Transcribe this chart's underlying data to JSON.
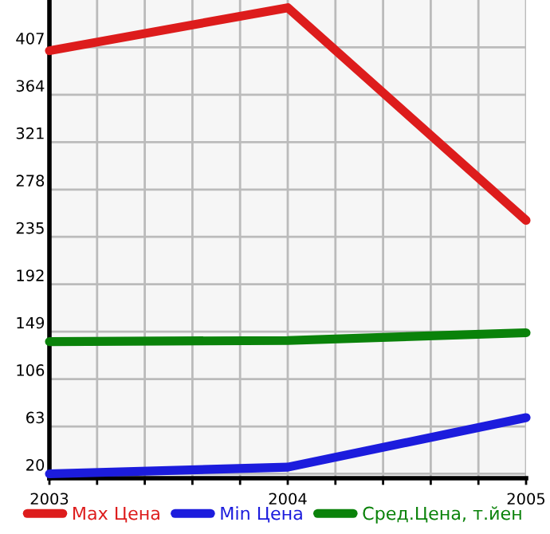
{
  "chart_data": {
    "type": "line",
    "x": [
      2003,
      2004,
      2005
    ],
    "series": [
      {
        "name": "Max Цена",
        "color": "#dd1c1c",
        "values": [
          404,
          443,
          250
        ]
      },
      {
        "name": "Min Цена",
        "color": "#1c1cdd",
        "values": [
          20,
          26,
          71
        ]
      },
      {
        "name": "Сред.Цена, т.йен",
        "color": "#0a820a",
        "values": [
          140,
          141,
          148
        ]
      }
    ],
    "xlim": [
      2003,
      2005
    ],
    "xticks": [
      2003,
      {
        "value": 2003.2,
        "label": null
      },
      {
        "value": 2003.4,
        "label": null
      },
      {
        "value": 2003.6,
        "label": null
      },
      {
        "value": 2003.8,
        "label": null
      },
      2004,
      {
        "value": 2004.2,
        "label": null
      },
      {
        "value": 2004.4,
        "label": null
      },
      {
        "value": 2004.6,
        "label": null
      },
      {
        "value": 2004.8,
        "label": null
      },
      2005
    ],
    "ylim": [
      16,
      450
    ],
    "yticks": [
      20,
      63,
      106,
      149,
      192,
      235,
      278,
      321,
      364,
      407
    ],
    "grid": true,
    "legend": "bottom",
    "marker": "none",
    "line_style": "solid"
  }
}
